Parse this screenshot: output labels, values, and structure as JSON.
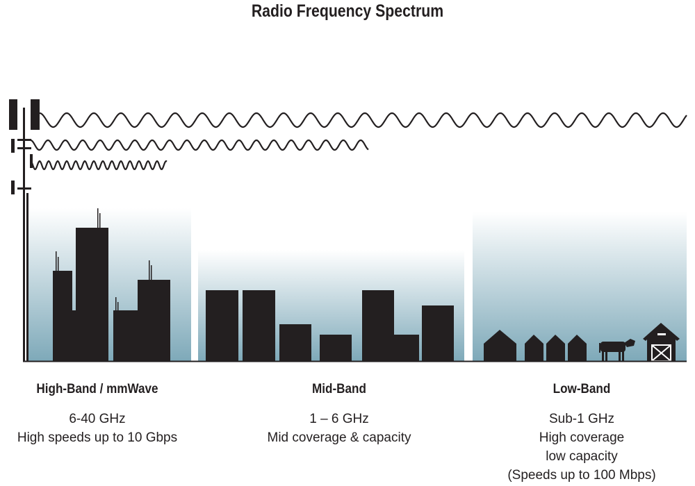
{
  "title": "Radio Frequency Spectrum",
  "bands": [
    {
      "name": "High-Band / mmWave",
      "lines": [
        "6-40 GHz",
        "High speeds up to 10 Gbps"
      ]
    },
    {
      "name": "Mid-Band",
      "lines": [
        "1 – 6 GHz",
        "Mid coverage & capacity"
      ]
    },
    {
      "name": "Low-Band",
      "lines": [
        "Sub-1 GHz",
        "High coverage",
        "low capacity",
        "(Speeds up to 100 Mbps)"
      ]
    }
  ],
  "colors": {
    "ink": "#231f20",
    "sky_bottom": "#7ea9b9"
  }
}
